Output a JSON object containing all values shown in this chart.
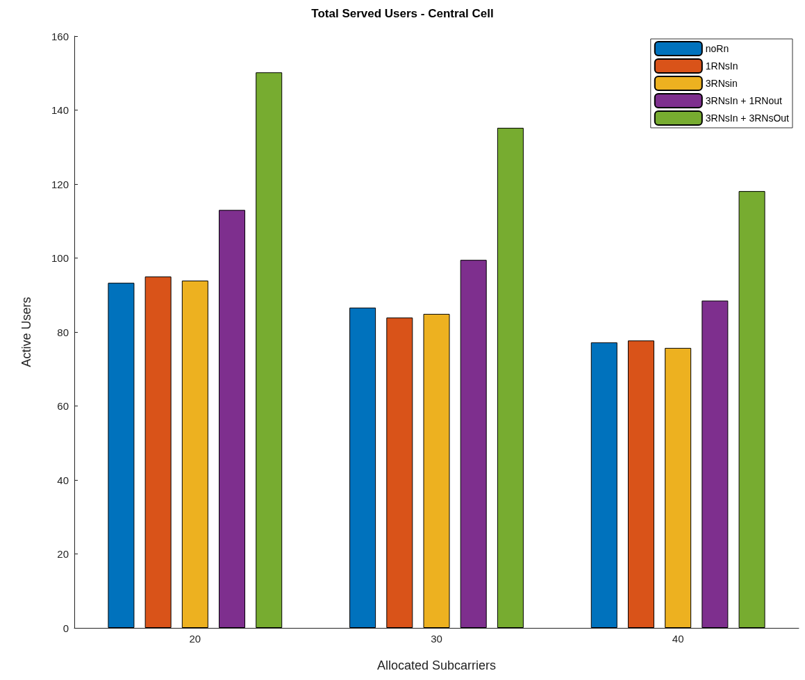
{
  "chart_data": {
    "type": "bar",
    "title": "Total Served Users - Central Cell",
    "xlabel": "Allocated Subcarriers",
    "ylabel": "Active Users",
    "categories": [
      "20",
      "30",
      "40"
    ],
    "series": [
      {
        "name": "noRn",
        "color": "#0072bd",
        "values": [
          93.3,
          86.6,
          77.2
        ]
      },
      {
        "name": "1RNsIn",
        "color": "#d95319",
        "values": [
          95,
          83.9,
          77.7
        ]
      },
      {
        "name": "3RNsin",
        "color": "#edb120",
        "values": [
          93.9,
          84.9,
          75.7
        ]
      },
      {
        "name": "3RNsIn + 1RNout",
        "color": "#7e2f8e",
        "values": [
          113,
          99.5,
          88.5
        ]
      },
      {
        "name": "3RNsIn + 3RNsOut",
        "color": "#77ac30",
        "values": [
          150.2,
          135.2,
          118.1
        ]
      }
    ],
    "ylim": [
      0,
      160
    ],
    "yticks": [
      0,
      20,
      40,
      60,
      80,
      100,
      120,
      140,
      160
    ],
    "grid": false,
    "legend": "top right"
  }
}
